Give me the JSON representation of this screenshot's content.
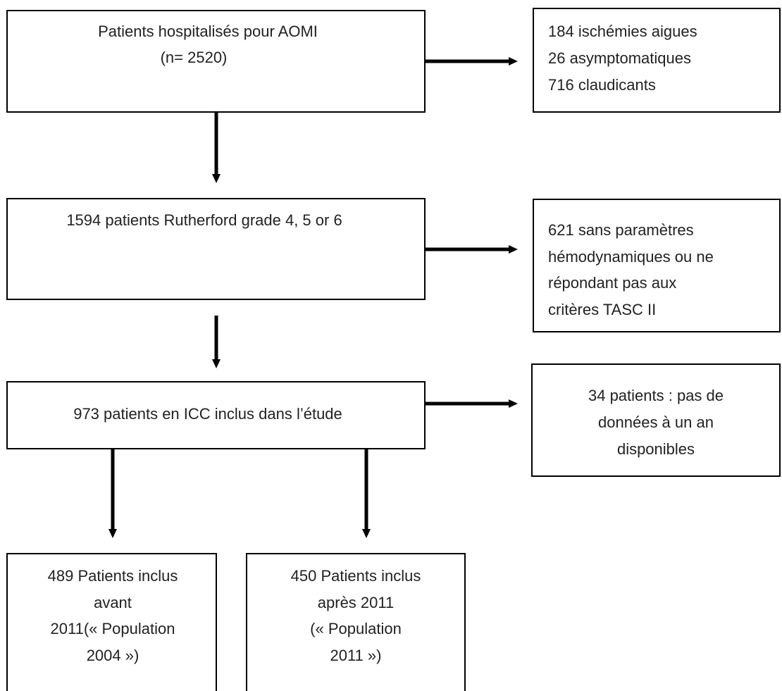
{
  "nodes": [
    {
      "lines": [
        "Patients hospitalisés pour AOMI",
        "(n= 2520)"
      ]
    },
    {
      "lines": [
        "184 ischémies aigues",
        "26 asymptomatiques",
        "716 claudicants"
      ]
    },
    {
      "lines": [
        "1594 patients Rutherford grade 4, 5 or 6"
      ]
    },
    {
      "lines": [
        "621 sans paramètres",
        "hémodynamiques ou ne",
        "répondant pas aux",
        "critères TASC II"
      ]
    },
    {
      "lines": [
        "973 patients en ICC inclus dans l’étude"
      ]
    },
    {
      "lines": [
        "34 patients : pas de",
        "données à un an",
        "disponibles"
      ]
    },
    {
      "lines": [
        "489 Patients inclus",
        "avant",
        "2011(« Population",
        "2004 »)"
      ]
    },
    {
      "lines": [
        "450 Patients inclus",
        "après 2011",
        "(« Population",
        "2011 »)"
      ]
    }
  ]
}
